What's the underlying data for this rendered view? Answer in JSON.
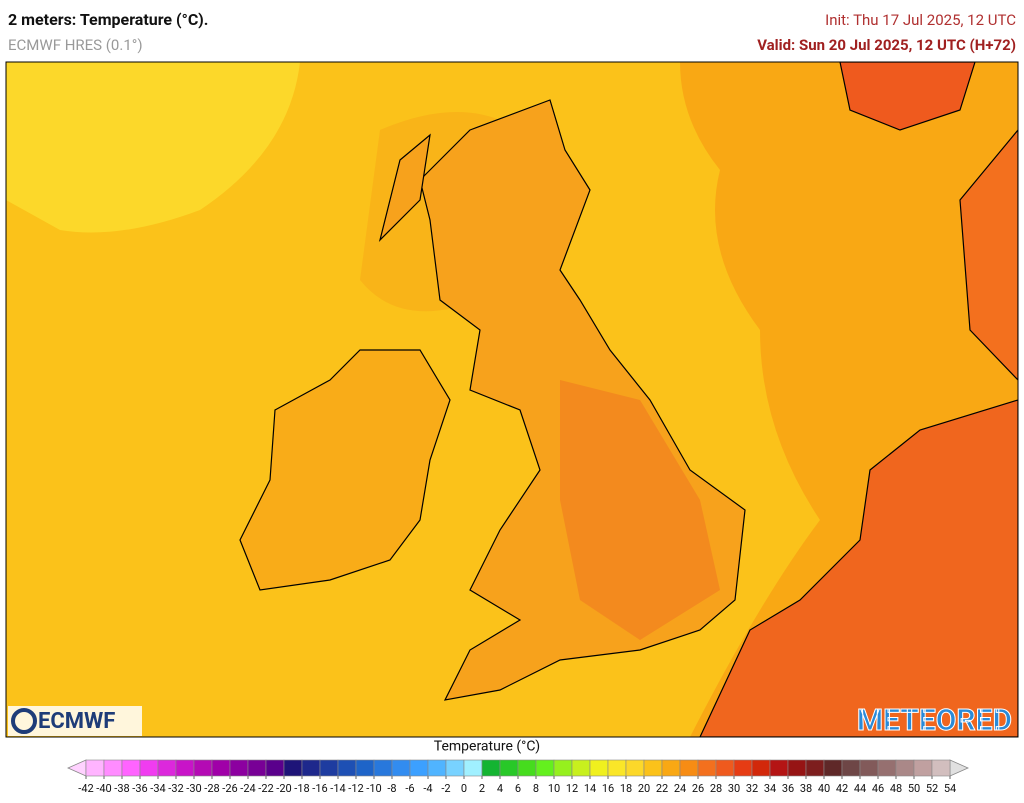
{
  "header": {
    "title": "2 meters: Temperature (°C).",
    "model": "ECMWF HRES (0.1°)",
    "init": "Init: Thu 17 Jul 2025, 12 UTC",
    "valid": "Valid: Sun 20 Jul 2025, 12 UTC (H+72)"
  },
  "logos": {
    "left": "ECMWF",
    "right": "METEORED"
  },
  "colorbar": {
    "title": "Temperature (°C)",
    "ticks": [
      -42,
      -40,
      -38,
      -36,
      -34,
      -32,
      -30,
      -28,
      -26,
      -24,
      -22,
      -20,
      -18,
      -16,
      -14,
      -12,
      -10,
      -8,
      -6,
      -4,
      -2,
      0,
      2,
      4,
      6,
      8,
      10,
      12,
      14,
      16,
      18,
      20,
      22,
      24,
      26,
      28,
      30,
      32,
      34,
      36,
      38,
      40,
      42,
      44,
      46,
      48,
      50,
      52,
      54
    ],
    "colors": [
      "#ffb4ff",
      "#ff8cff",
      "#ff64ff",
      "#f03cf0",
      "#dc28dc",
      "#c814c8",
      "#b40ab4",
      "#a000a8",
      "#8c00a0",
      "#780096",
      "#5a008c",
      "#1e1478",
      "#1e288c",
      "#1e3ca0",
      "#1e50b4",
      "#1e64c8",
      "#2878dc",
      "#328cf0",
      "#3ca0ff",
      "#50b4ff",
      "#78d2ff",
      "#a0f0ff",
      "#14b432",
      "#28c828",
      "#46dc1e",
      "#64f01e",
      "#96f01e",
      "#c8f01e",
      "#f0f01e",
      "#fae628",
      "#fcd82a",
      "#fbc21a",
      "#f9a814",
      "#f78c14",
      "#f3701e",
      "#ef5a1e",
      "#e63c14",
      "#d2280a",
      "#b41414",
      "#961414",
      "#7d1e1e",
      "#5f2828",
      "#6e4646",
      "#825a5a",
      "#967070",
      "#aa8888",
      "#c0a0a0",
      "#d2bebe"
    ],
    "under_color": "#ffd2ff",
    "over_color": "#e0e0e0"
  }
}
